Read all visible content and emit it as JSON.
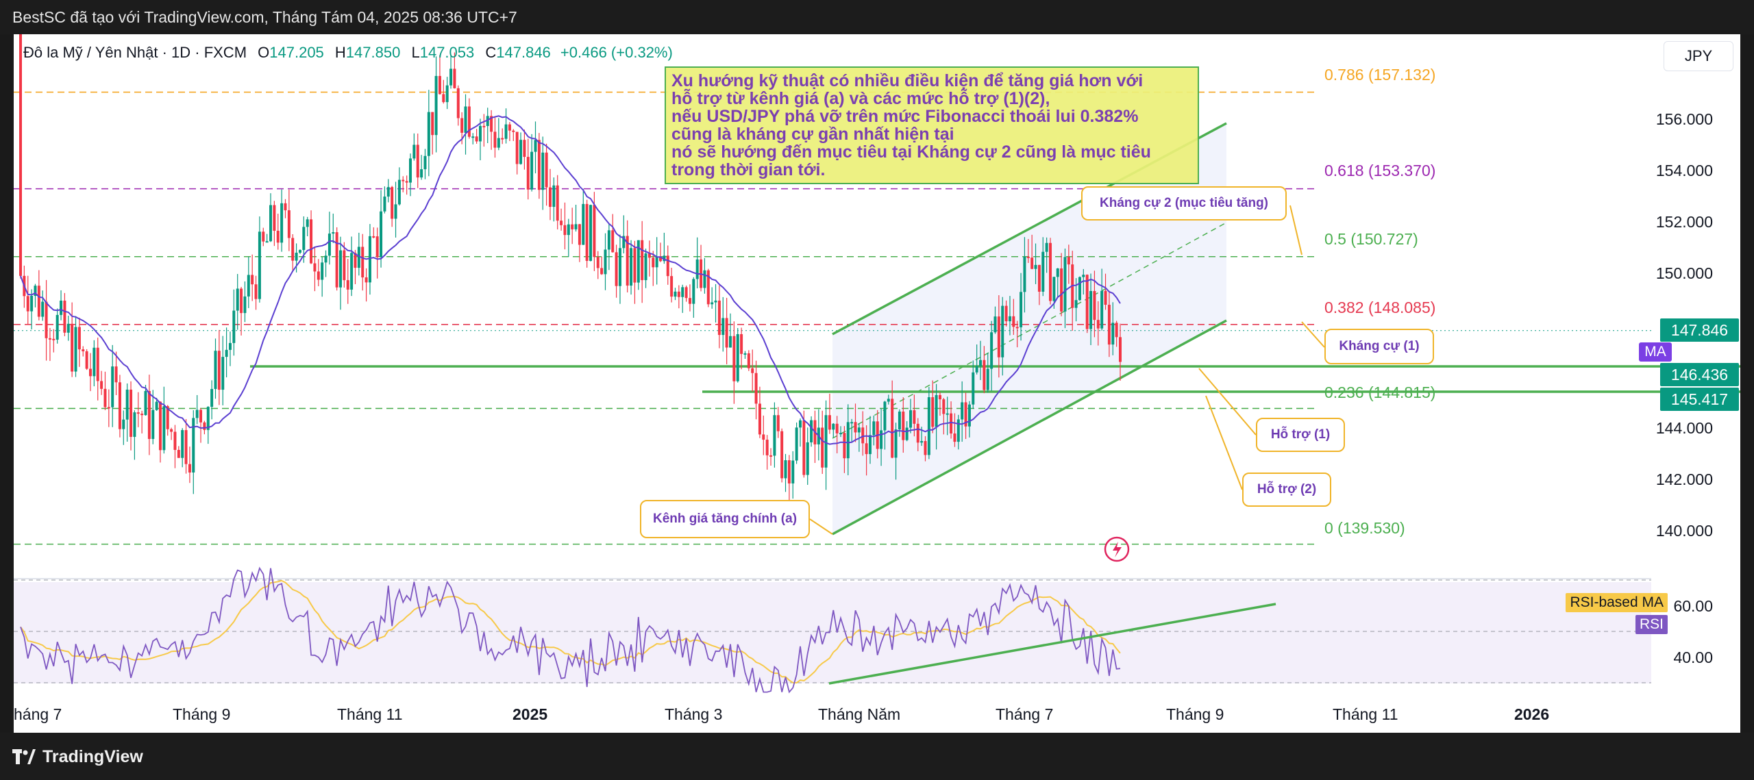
{
  "topbar": {
    "text": "BestSC đã tạo với TradingView.com, Tháng Tám 04, 2025 08:36 UTC+7"
  },
  "legend": {
    "symbol": "Đô la Mỹ / Yên Nhật · 1D · FXCM",
    "open_label": "O",
    "open": "147.205",
    "high_label": "H",
    "high": "147.850",
    "low_label": "L",
    "low": "147.053",
    "close_label": "C",
    "close": "147.846",
    "change": "+0.466 (+0.32%)"
  },
  "unit_button": "JPY",
  "annotation": [
    "Xu hướng kỹ thuật có nhiều điều kiện để tăng giá hơn với",
    "hỗ trợ từ kênh giá (a) và các mức hỗ trợ (1)(2),",
    "nếu USD/JPY phá vỡ trên mức Fibonacci thoái lui 0.382%",
    "cũng là kháng cự gần nhất hiện tại",
    "nó sẽ hướng đến mục tiêu tại Kháng cự 2 cũng là mục tiêu",
    "trong thời gian tới."
  ],
  "callouts": {
    "resistance2": "Kháng cự 2 (mục tiêu tăng)",
    "resistance1": "Kháng cự (1)",
    "support1": "Hỗ trợ (1)",
    "support2": "Hỗ trợ (2)",
    "channel": "Kênh giá tăng chính (a)"
  },
  "fib_levels": [
    {
      "label": "0.786 (157.132)",
      "price": 157.132,
      "color": "#f5a623"
    },
    {
      "label": "0.618 (153.370)",
      "price": 153.37,
      "color": "#9c27b0"
    },
    {
      "label": "0.5 (150.727)",
      "price": 150.727,
      "color": "#4caf50"
    },
    {
      "label": "0.382 (148.085)",
      "price": 148.085,
      "color": "#e53950"
    },
    {
      "label": "0.236 (144.815)",
      "price": 144.815,
      "color": "#4caf50"
    },
    {
      "label": "0 (139.530)",
      "price": 139.53,
      "color": "#4caf50"
    }
  ],
  "price_axis": {
    "ticks": [
      "156.000",
      "154.000",
      "152.000",
      "150.000",
      "144.000",
      "142.000",
      "140.000"
    ],
    "last_price": "147.846",
    "ma_label": "MA",
    "support1_price": "146.436",
    "support2_price": "145.417"
  },
  "rsi_axis": {
    "ticks": [
      "60.00",
      "40.00"
    ],
    "rsi_ma_label": "RSI-based MA",
    "rsi_label": "RSI"
  },
  "time_axis": [
    "háng 7",
    "Tháng 9",
    "Tháng 11",
    "2025",
    "Tháng 3",
    "Tháng Năm",
    "Tháng 7",
    "Tháng 9",
    "Tháng 11",
    "2026"
  ],
  "brand": "TradingView",
  "colors": {
    "up": "#089981",
    "down": "#f23645",
    "ma": "#5b3fd1",
    "channel": "#4caf50",
    "rsi": "#7e57c2",
    "rsi_ma": "#f7c948",
    "callout_border": "#f0b429"
  },
  "chart_data": {
    "type": "candlestick",
    "ma": "MA",
    "approx_monthly_closes": [
      {
        "x": "2024-07",
        "y": 150.0
      },
      {
        "x": "2024-08",
        "y": 145.5
      },
      {
        "x": "2024-09",
        "y": 143.5
      },
      {
        "x": "2024-10",
        "y": 152.0
      },
      {
        "x": "2024-11",
        "y": 150.0
      },
      {
        "x": "2024-12",
        "y": 157.2
      },
      {
        "x": "2025-01",
        "y": 154.5
      },
      {
        "x": "2025-02",
        "y": 150.5
      },
      {
        "x": "2025-03",
        "y": 149.8
      },
      {
        "x": "2025-04",
        "y": 143.0
      },
      {
        "x": "2025-05",
        "y": 144.0
      },
      {
        "x": "2025-06",
        "y": 144.2
      },
      {
        "x": "2025-07",
        "y": 150.5
      },
      {
        "x": "2025-08",
        "y": 147.8
      }
    ],
    "ylim": [
      138,
      158
    ]
  }
}
